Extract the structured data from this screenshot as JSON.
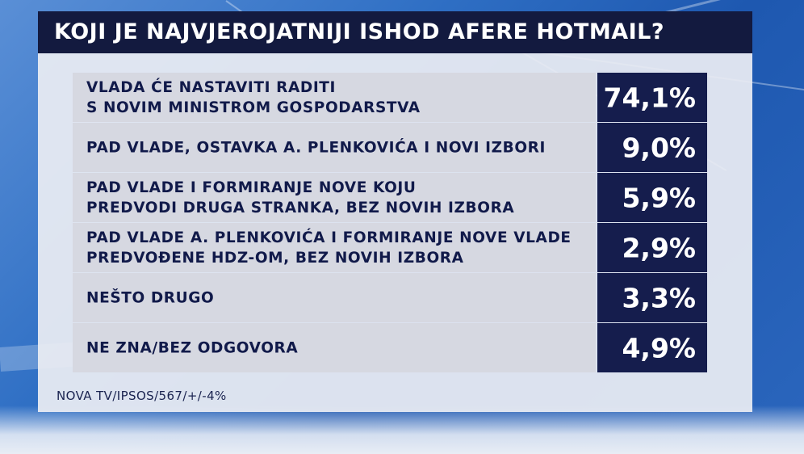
{
  "chart_data": {
    "type": "table",
    "title": "KOJI JE NAJVJEROJATNIJI ISHOD AFERE HOTMAIL?",
    "source": "NOVA TV/IPSOS/567/+/-4%",
    "rows": [
      {
        "label": "VLADA ĆE NASTAVITI RADITI\nS NOVIM MINISTROM GOSPODARSTVA",
        "value": 74.1,
        "display": "74,1%"
      },
      {
        "label": "PAD VLADE, OSTAVKA A. PLENKOVIĆA I NOVI IZBORI",
        "value": 9.0,
        "display": "9,0%"
      },
      {
        "label": "PAD VLADE I FORMIRANJE NOVE KOJU\nPREDVODI DRUGA STRANKA, BEZ NOVIH IZBORA",
        "value": 5.9,
        "display": "5,9%"
      },
      {
        "label": "PAD VLADE A. PLENKOVIĆA I FORMIRANJE NOVE VLADE\nPREDVOĐENE HDZ-OM, BEZ NOVIH IZBORA",
        "value": 2.9,
        "display": "2,9%"
      },
      {
        "label": "NEŠTO DRUGO",
        "value": 3.3,
        "display": "3,3%"
      },
      {
        "label": "NE ZNA/BEZ ODGOVORA",
        "value": 4.9,
        "display": "4,9%"
      }
    ]
  },
  "colors": {
    "header_bg": "#131a3f",
    "label_bg": "#d6d8e1",
    "value_bg": "#151d4d",
    "label_text": "#111a4a"
  }
}
